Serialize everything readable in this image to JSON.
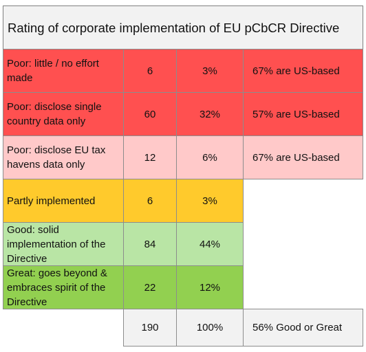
{
  "title": "Rating of corporate implementation of EU pCbCR Directive",
  "rows": [
    {
      "rating": "Poor: little / no effort made",
      "count": "6",
      "percent": "3%",
      "note": "67% are US-based",
      "color": "#ff5050"
    },
    {
      "rating": "Poor: disclose single country data only",
      "count": "60",
      "percent": "32%",
      "note": "57% are US-based",
      "color": "#ff5050"
    },
    {
      "rating": "Poor: disclose EU tax havens data only",
      "count": "12",
      "percent": "6%",
      "note": "67% are US-based",
      "color": "#ffc9c9"
    },
    {
      "rating": "Partly implemented",
      "count": "6",
      "percent": "3%",
      "note": "",
      "color": "#ffca2c"
    },
    {
      "rating": "Good: solid implementation of the Directive",
      "count": "84",
      "percent": "44%",
      "note": "",
      "color": "#b9e5a5"
    },
    {
      "rating": "Great: goes beyond & embraces spirit of the Directive",
      "count": "22",
      "percent": "12%",
      "note": "",
      "color": "#92d050"
    }
  ],
  "total": {
    "count": "190",
    "percent": "100%",
    "note": "56% Good or Great"
  }
}
